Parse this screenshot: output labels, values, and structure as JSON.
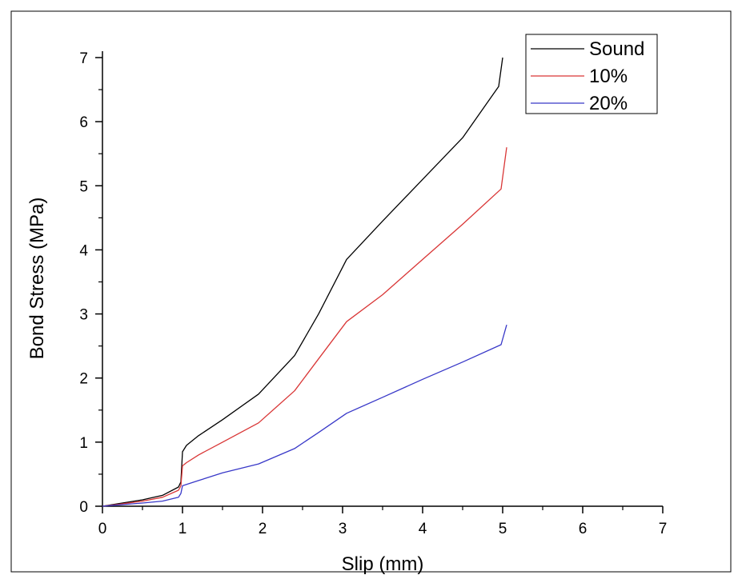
{
  "chart_data": {
    "type": "line",
    "title": "",
    "xlabel": "Slip (mm)",
    "ylabel": "Bond Stress (MPa)",
    "xlim": [
      0,
      7
    ],
    "ylim": [
      0,
      7
    ],
    "xticks": [
      0,
      1,
      2,
      3,
      4,
      5,
      6,
      7
    ],
    "yticks": [
      0,
      1,
      2,
      3,
      4,
      5,
      6,
      7
    ],
    "xtick_labels": [
      "0",
      "1",
      "2",
      "3",
      "4",
      "5",
      "6",
      "7"
    ],
    "ytick_labels": [
      "0",
      "1",
      "2",
      "3",
      "4",
      "5",
      "6",
      "7"
    ],
    "grid": false,
    "legend_position": "top-right",
    "series": [
      {
        "name": "Sound",
        "color": "#000000",
        "x": [
          0,
          0.2,
          0.5,
          0.75,
          0.95,
          0.98,
          1.0,
          1.05,
          1.2,
          1.5,
          1.95,
          2.4,
          2.7,
          3.05,
          3.5,
          4.0,
          4.5,
          4.95,
          5.0
        ],
        "y": [
          0,
          0.04,
          0.1,
          0.17,
          0.3,
          0.38,
          0.85,
          0.95,
          1.1,
          1.35,
          1.75,
          2.35,
          3.0,
          3.85,
          4.45,
          5.1,
          5.75,
          6.55,
          7.0
        ]
      },
      {
        "name": "10%",
        "color": "#d93636",
        "x": [
          0,
          0.2,
          0.5,
          0.75,
          0.95,
          0.98,
          1.0,
          1.05,
          1.2,
          1.5,
          1.95,
          2.4,
          2.7,
          3.05,
          3.5,
          4.0,
          4.5,
          4.98,
          5.05
        ],
        "y": [
          0,
          0.03,
          0.08,
          0.14,
          0.25,
          0.32,
          0.63,
          0.68,
          0.8,
          1.0,
          1.3,
          1.8,
          2.3,
          2.88,
          3.3,
          3.85,
          4.4,
          4.95,
          5.6
        ]
      },
      {
        "name": "20%",
        "color": "#3838c8",
        "x": [
          0,
          0.2,
          0.5,
          0.75,
          0.95,
          0.98,
          1.0,
          1.05,
          1.2,
          1.5,
          1.95,
          2.4,
          2.7,
          3.05,
          3.5,
          4.0,
          4.5,
          4.98,
          5.05
        ],
        "y": [
          0,
          0.02,
          0.05,
          0.08,
          0.14,
          0.2,
          0.32,
          0.34,
          0.4,
          0.52,
          0.66,
          0.9,
          1.15,
          1.45,
          1.7,
          1.98,
          2.25,
          2.52,
          2.83
        ]
      }
    ]
  }
}
